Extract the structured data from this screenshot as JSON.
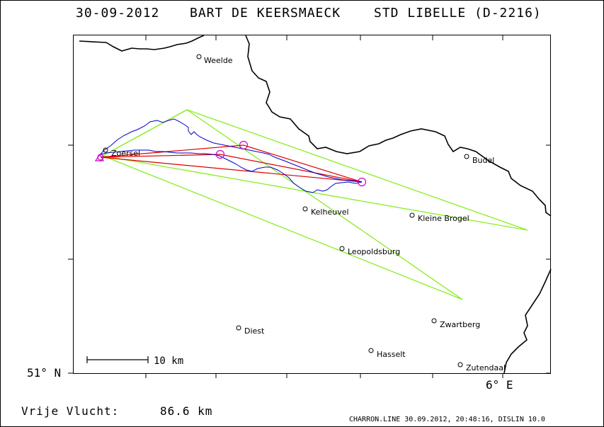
{
  "header": {
    "date": "30-09-2012",
    "pilot": "BART DE KEERSMAECK",
    "glider": "STD LIBELLE (D-2216)"
  },
  "axes": {
    "lat_label": "51° N",
    "lon_label": "6° E"
  },
  "scale_bar": {
    "label": "10 km"
  },
  "footer": {
    "distance_label": "Vrije Vlucht:",
    "distance_value": "86.6 km",
    "credit": "CHARRON.LINE 30.09.2012, 20:48:16, DISLIN 10.0"
  },
  "towns": [
    {
      "name": "Weelde"
    },
    {
      "name": "Zoersel"
    },
    {
      "name": "Budel"
    },
    {
      "name": "Kelheuvel"
    },
    {
      "name": "Kleine Brogel"
    },
    {
      "name": "Leopoldsburg"
    },
    {
      "name": "Diest"
    },
    {
      "name": "Zwartberg"
    },
    {
      "name": "Hasselt"
    },
    {
      "name": "Zutendaal"
    }
  ],
  "colors": {
    "track": "#0000cc",
    "route": "#dd0000",
    "sectors": "#88ee22",
    "turnpoints": "#cc00cc",
    "border": "#000000"
  }
}
